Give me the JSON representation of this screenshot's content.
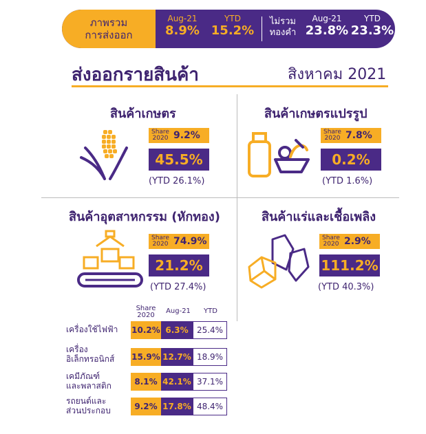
{
  "header": {
    "overview_label": "ภาพรวม\nการส่งออก",
    "overview_line1": "ภาพรวม",
    "overview_line2": "การส่งออก",
    "aug_label": "Aug-21",
    "ytd_label": "YTD",
    "overview_aug": "8.9%",
    "overview_ytd": "15.2%",
    "exgold_line1": "ไม่รวม",
    "exgold_line2": "ทองคำ",
    "exgold_aug": "23.8%",
    "exgold_ytd": "23.3%"
  },
  "title": "ส่งออกรายสินค้า",
  "period": "สิงหาคม 2021",
  "categories": [
    {
      "name": "สินค้าเกษตร",
      "share_label_1": "Share",
      "share_label_2": "2020",
      "share": "9.2%",
      "aug": "45.5%",
      "ytd": "(YTD 26.1%)",
      "icon": "corn-icon"
    },
    {
      "name": "สินค้าเกษตรแปรรูป",
      "share_label_1": "Share",
      "share_label_2": "2020",
      "share": "7.8%",
      "aug": "0.2%",
      "ytd": "(YTD 1.6%)",
      "icon": "processed-food-icon"
    },
    {
      "name": "สินค้าอุตสาหกรรม (หักทอง)",
      "share_label_1": "Share",
      "share_label_2": "2020",
      "share": "74.9%",
      "aug": "21.2%",
      "ytd": "(YTD 27.4%)",
      "icon": "conveyor-icon"
    },
    {
      "name": "สินค้าแร่และเชื้อเพลิง",
      "share_label_1": "Share",
      "share_label_2": "2020",
      "share": "2.9%",
      "aug": "111.2%",
      "ytd": "(YTD 40.3%)",
      "icon": "minerals-icon"
    }
  ],
  "table": {
    "headers": {
      "share_1": "Share",
      "share_2": "2020",
      "aug": "Aug-21",
      "ytd": "YTD"
    },
    "rows": [
      {
        "label_1": "เครื่องใช้ไฟฟ้า",
        "label_2": "",
        "share": "10.2%",
        "aug": "6.3%",
        "ytd": "25.4%"
      },
      {
        "label_1": "เครื่อง",
        "label_2": "อิเล็กทรอนิกส์",
        "share": "15.9%",
        "aug": "12.7%",
        "ytd": "18.9%"
      },
      {
        "label_1": "เคมีภัณฑ์",
        "label_2": "และพลาสติก",
        "share": "8.1%",
        "aug": "42.1%",
        "ytd": "37.1%"
      },
      {
        "label_1": "รถยนต์และ",
        "label_2": "ส่วนประกอบ",
        "share": "9.2%",
        "aug": "17.8%",
        "ytd": "48.4%"
      }
    ]
  },
  "colors": {
    "purple": "#4a2a86",
    "orange": "#f7ad25"
  }
}
